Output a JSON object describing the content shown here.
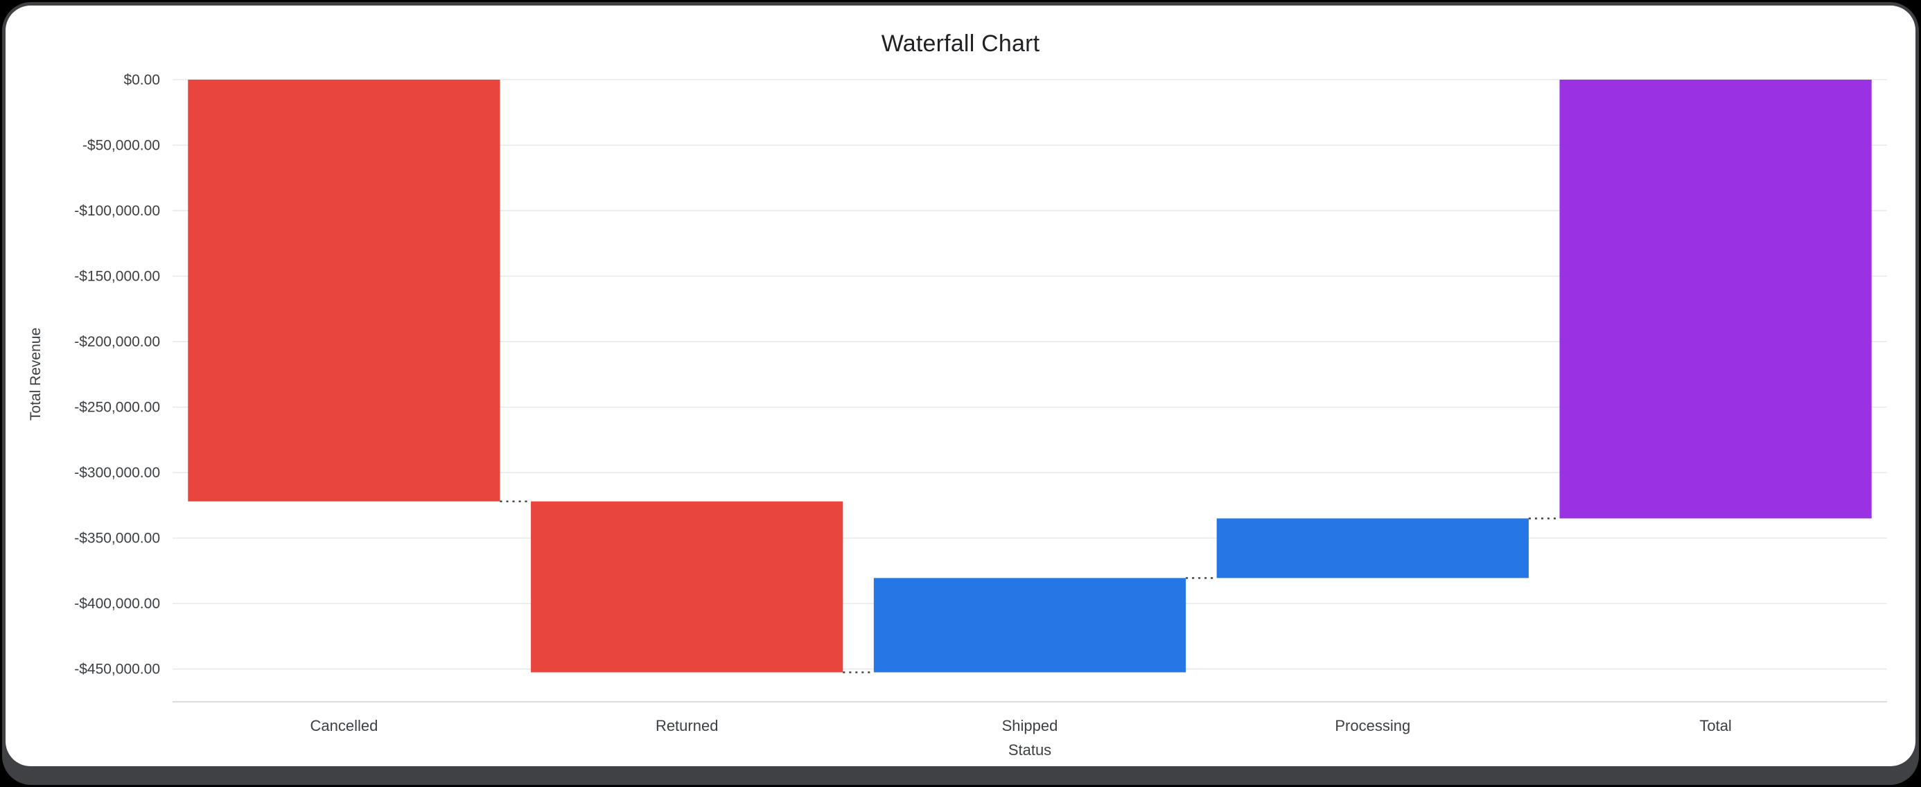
{
  "window": {
    "background": "#000000",
    "frame_color": "#3f4144",
    "card_background": "#ffffff"
  },
  "chart_data": {
    "type": "bar",
    "subtype": "waterfall",
    "title": "Waterfall Chart",
    "xlabel": "Status",
    "ylabel": "Total Revenue",
    "categories": [
      "Cancelled",
      "Returned",
      "Shipped",
      "Processing",
      "Total"
    ],
    "values": [
      -322000,
      -130500,
      72000,
      45500,
      -335000
    ],
    "bar_types": [
      "decrease",
      "decrease",
      "increase",
      "increase",
      "total"
    ],
    "cumulative": [
      -322000,
      -452500,
      -380500,
      -335000,
      -335000
    ],
    "colors": {
      "decrease": "#e8453c",
      "increase": "#2577e6",
      "total": "#9a31e3"
    },
    "ylim": [
      -475000,
      0
    ],
    "y_ticks": [
      "$0.00",
      "-$50,000.00",
      "-$100,000.00",
      "-$150,000.00",
      "-$200,000.00",
      "-$250,000.00",
      "-$300,000.00",
      "-$350,000.00",
      "-$400,000.00",
      "-$450,000.00"
    ],
    "y_tick_values": [
      0,
      -50000,
      -100000,
      -150000,
      -200000,
      -250000,
      -300000,
      -350000,
      -400000,
      -450000
    ],
    "grid": true,
    "gridline_color": "#e8e8e8",
    "axis_line_color": "#dadce0",
    "connector_style": "dotted",
    "connector_color": "#424242",
    "legend_position": "none"
  }
}
